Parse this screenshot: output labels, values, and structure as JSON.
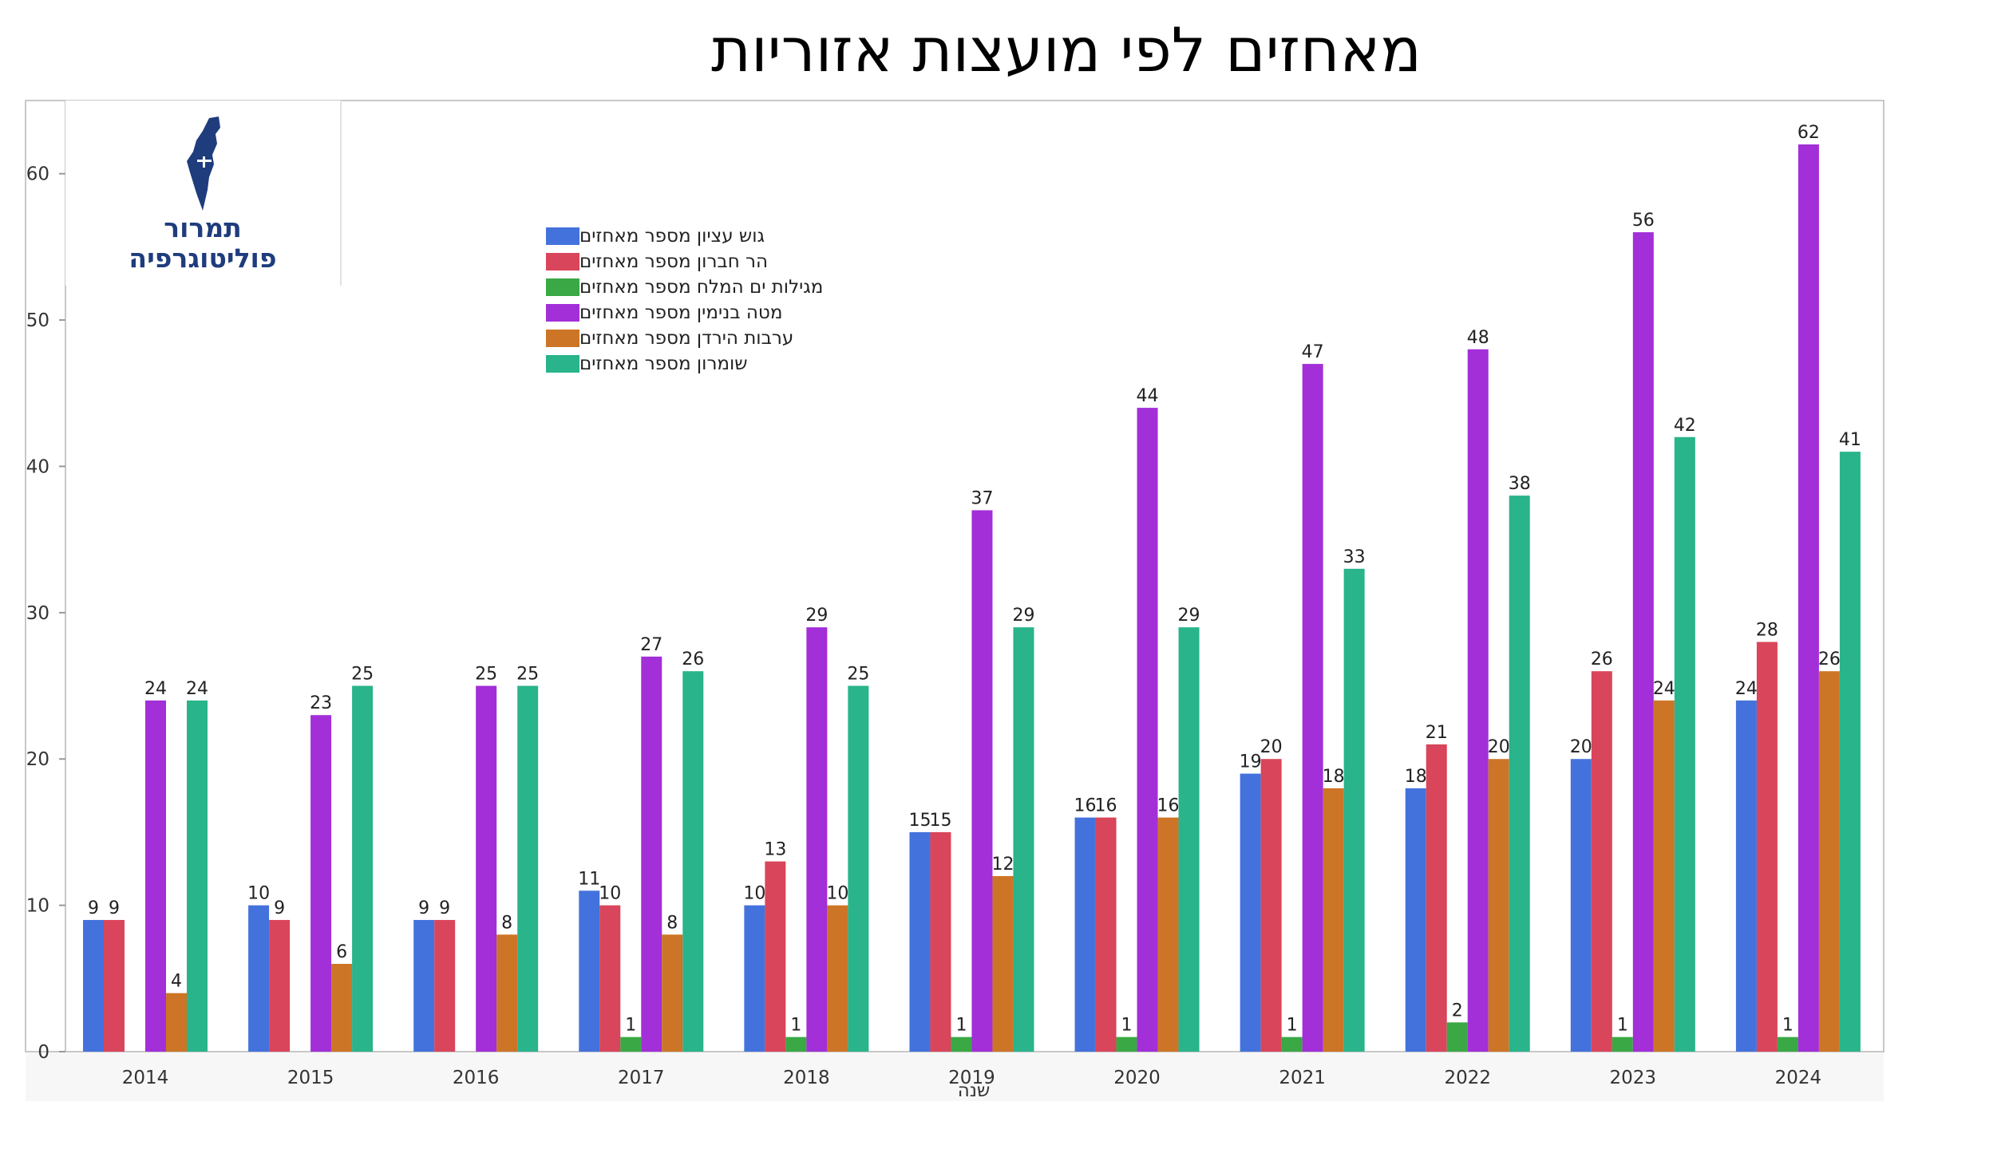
{
  "title": "מאחזים לפי מועצות אזוריות",
  "logo": {
    "line1": "תמרור",
    "line2": "פוליטוגרפיה",
    "brand_color": "#1f3c7d"
  },
  "chart_data": {
    "type": "bar",
    "title": "מאחזים לפי מועצות אזוריות",
    "xlabel": "שנה",
    "ylabel": "",
    "ylim": [
      0,
      65
    ],
    "yticks": [
      0,
      10,
      20,
      30,
      40,
      50,
      60
    ],
    "grid": false,
    "legend_position": "top-left",
    "categories": [
      "2014",
      "2015",
      "2016",
      "2017",
      "2018",
      "2019",
      "2020",
      "2021",
      "2022",
      "2023",
      "2024"
    ],
    "series": [
      {
        "name": "גוש עציון מספר מאחזים",
        "color": "#4472dd",
        "values": [
          9,
          10,
          9,
          11,
          10,
          15,
          16,
          19,
          18,
          20,
          24
        ]
      },
      {
        "name": "הר חברון מספר מאחזים",
        "color": "#d9455a",
        "values": [
          9,
          9,
          9,
          10,
          13,
          15,
          16,
          20,
          21,
          26,
          28
        ]
      },
      {
        "name": "מגילות ים המלח מספר מאחזים",
        "color": "#3aa845",
        "values": [
          0,
          0,
          0,
          1,
          1,
          1,
          1,
          1,
          2,
          1,
          1
        ]
      },
      {
        "name": "מטה בנימין מספר מאחזים",
        "color": "#a22fd8",
        "values": [
          24,
          23,
          25,
          27,
          29,
          37,
          44,
          47,
          48,
          56,
          62
        ]
      },
      {
        "name": "ערבות הירדן מספר מאחזים",
        "color": "#cd7526",
        "values": [
          4,
          6,
          8,
          8,
          10,
          12,
          16,
          18,
          20,
          24,
          26
        ]
      },
      {
        "name": "שומרון מספר מאחזים",
        "color": "#29b48b",
        "values": [
          24,
          25,
          25,
          26,
          25,
          29,
          29,
          33,
          38,
          42,
          41
        ]
      }
    ]
  }
}
